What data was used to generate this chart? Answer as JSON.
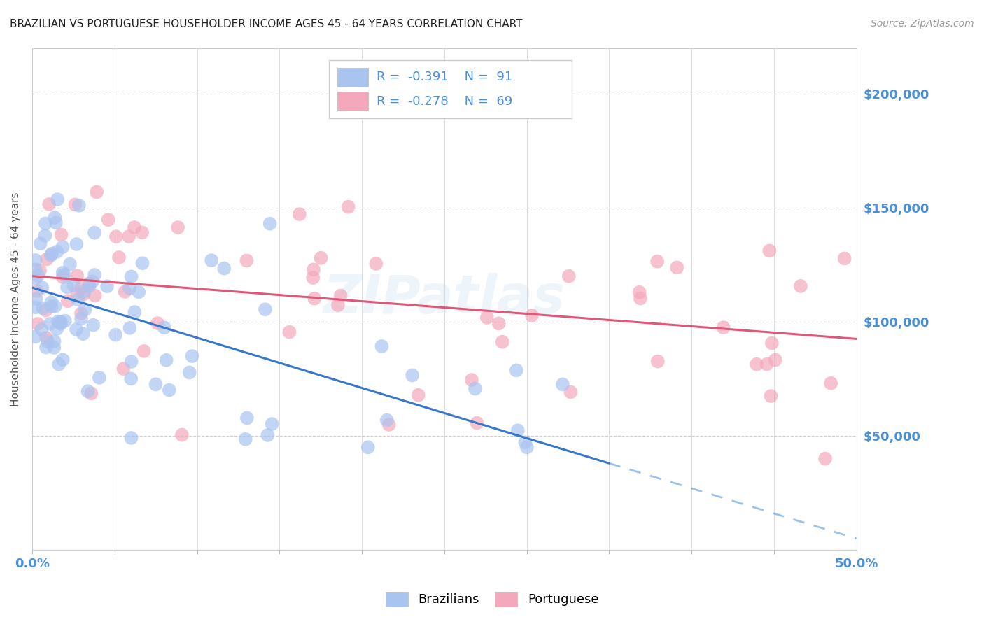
{
  "title": "BRAZILIAN VS PORTUGUESE HOUSEHOLDER INCOME AGES 45 - 64 YEARS CORRELATION CHART",
  "source": "Source: ZipAtlas.com",
  "ylabel": "Householder Income Ages 45 - 64 years",
  "xlim": [
    0.0,
    50.0
  ],
  "ylim": [
    0,
    220000
  ],
  "R_brazilian": -0.391,
  "N_brazilian": 91,
  "R_portuguese": -0.278,
  "N_portuguese": 69,
  "color_brazilian": "#aac4f0",
  "color_portuguese": "#f4a8bc",
  "color_line_brazilian": "#3878c8",
  "color_line_portuguese": "#e05878",
  "color_blue": "#4a90d9",
  "color_title": "#222222",
  "background_color": "#ffffff",
  "watermark": "ZIPatlas",
  "braz_intercept": 115000,
  "braz_slope": -2200,
  "port_intercept": 120000,
  "port_slope": -550,
  "braz_solid_end": 35,
  "braz_dash_end": 50
}
